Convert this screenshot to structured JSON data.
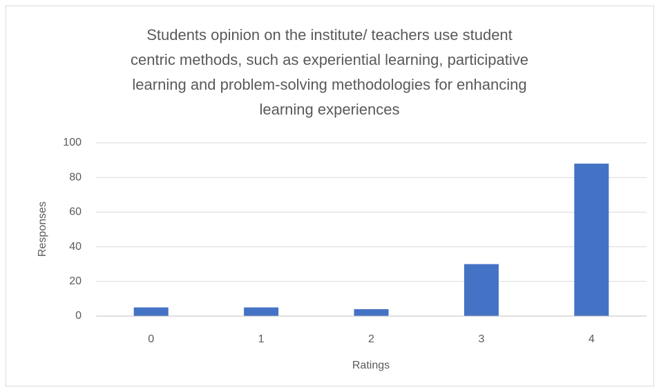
{
  "chart_data": {
    "type": "bar",
    "title": "Students opinion on the institute/ teachers use student centric methods, such as experiential learning, participative learning and problem-solving methodologies for enhancing learning experiences",
    "x_label": "Ratings",
    "y_label": "Responses",
    "categories": [
      "0",
      "1",
      "2",
      "3",
      "4"
    ],
    "values": [
      5,
      5,
      4,
      30,
      88
    ],
    "color": "#4472c4",
    "ylim": [
      0,
      100
    ],
    "yticks": [
      0,
      20,
      40,
      60,
      80,
      100
    ],
    "grid": true
  }
}
